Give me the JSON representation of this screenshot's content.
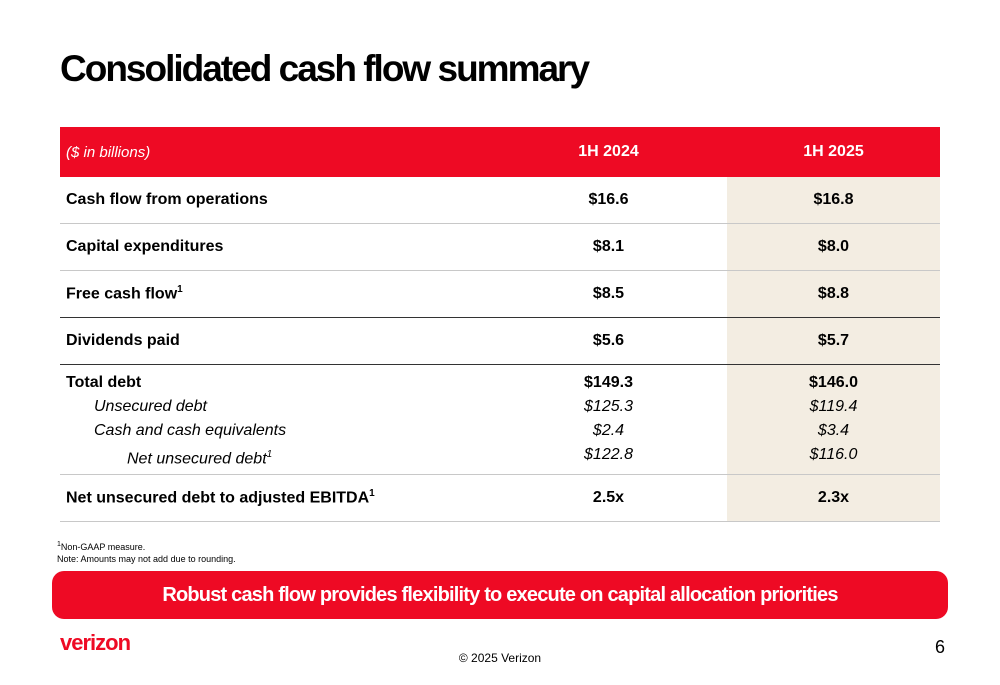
{
  "title": "Consolidated cash flow summary",
  "table": {
    "header": {
      "unit": "($ in billions)",
      "col1": "1H 2024",
      "col2": "1H 2025"
    },
    "rows": [
      {
        "label": "Cash flow from operations",
        "sup": "",
        "v1": "$16.6",
        "v2": "$16.8"
      },
      {
        "label": "Capital expenditures",
        "sup": "",
        "v1": "$8.1",
        "v2": "$8.0"
      },
      {
        "label": "Free cash flow",
        "sup": "1",
        "v1": "$8.5",
        "v2": "$8.8"
      },
      {
        "label": "Dividends paid",
        "sup": "",
        "v1": "$5.6",
        "v2": "$5.7"
      }
    ],
    "debt": {
      "total": {
        "label": "Total debt",
        "v1": "$149.3",
        "v2": "$146.0"
      },
      "unsecured": {
        "label": "Unsecured debt",
        "v1": "$125.3",
        "v2": "$119.4"
      },
      "cash": {
        "label": "Cash and cash equivalents",
        "v1": "$2.4",
        "v2": "$3.4"
      },
      "net": {
        "label": "Net unsecured debt",
        "sup": "1",
        "v1": "$122.8",
        "v2": "$116.0"
      }
    },
    "ratio": {
      "label": "Net unsecured debt to adjusted EBITDA",
      "sup": "1",
      "v1": "2.5x",
      "v2": "2.3x"
    }
  },
  "notes": {
    "footnote_sup": "1",
    "footnote": "Non-GAAP measure.",
    "note": "Note: Amounts may not add due to rounding."
  },
  "banner": "Robust cash flow provides flexibility to execute on capital allocation priorities",
  "footer": {
    "logo": "verizon",
    "copyright": "© 2025 Verizon",
    "page": "6"
  },
  "colors": {
    "brand_red": "#ee0a24",
    "highlight_column": "#f3ede2"
  }
}
